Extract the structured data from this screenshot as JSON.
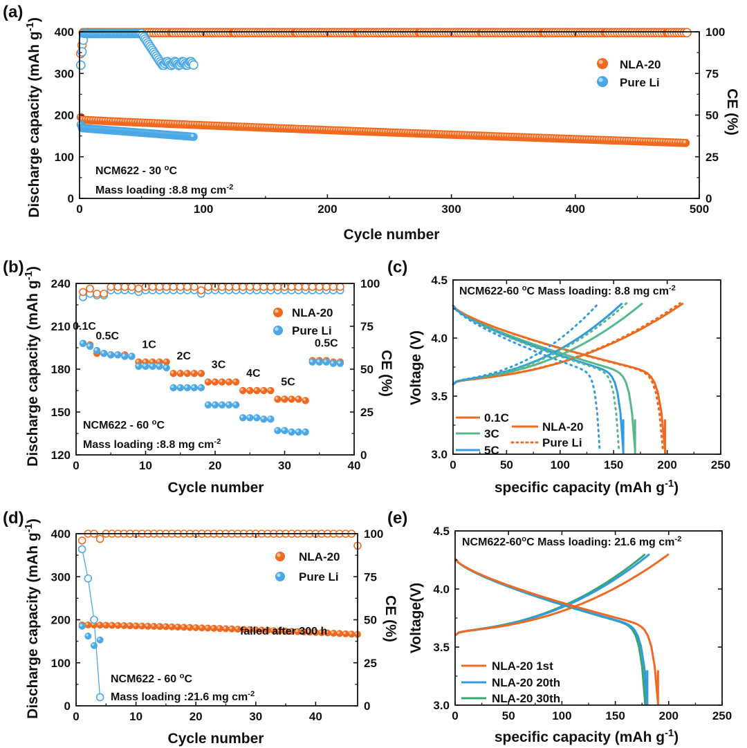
{
  "colors": {
    "nla": "#ef6a1f",
    "pure": "#4aa8e6",
    "c3": "#56b889",
    "c5": "#2f9be0",
    "g30": "#3aa56e"
  },
  "chart_data": [
    {
      "id": "a",
      "type": "scatter",
      "panel_label": "(a)",
      "xlabel": "Cycle number",
      "ylabel": "Discharge capacity (mAh g-1)",
      "ylabel_main": "Discharge capacity (mAh g",
      "ylabel_sup": "-1",
      "ylabel_end": ")",
      "y2label": "CE (%)",
      "xlim": [
        0,
        500
      ],
      "ylim": [
        0,
        400
      ],
      "y2lim": [
        0,
        100
      ],
      "xticks": [
        0,
        100,
        200,
        300,
        400,
        500
      ],
      "yticks": [
        0,
        100,
        200,
        300,
        400
      ],
      "y2ticks": [
        0,
        25,
        50,
        75,
        100
      ],
      "legend": [
        "NLA-20",
        "Pure Li"
      ],
      "annotations": [
        "NCM622 - 30 °C"
      ],
      "annotation_main": "NCM622 - 30 ",
      "annotation_sup": "o",
      "annotation_end": "C",
      "mass_loading_main": "Mass loading :8.8 mg cm",
      "mass_loading_sup": "-2",
      "series": [
        {
          "name": "NLA-20 capacity",
          "axis": "left",
          "cycles": 490,
          "start": 195,
          "end": 133
        },
        {
          "name": "Pure Li capacity",
          "axis": "left",
          "cycles": 92,
          "start": 177,
          "end": 148
        },
        {
          "name": "NLA-20 CE",
          "axis": "right",
          "cycles": 490,
          "first": 87,
          "plateau": 99.5
        },
        {
          "name": "Pure Li CE",
          "axis": "right",
          "cycles": 92,
          "first": 80,
          "plateau": 99,
          "drop_to": 80
        }
      ]
    },
    {
      "id": "b",
      "type": "scatter",
      "panel_label": "(b)",
      "xlabel": "Cycle number",
      "ylabel_main": "Discharge capacity (mAh g",
      "ylabel_sup": "-1",
      "ylabel_end": ")",
      "y2label": "CE (%)",
      "xlim": [
        0,
        40
      ],
      "ylim": [
        120,
        240
      ],
      "y2lim": [
        0,
        100
      ],
      "xticks": [
        0,
        10,
        20,
        30,
        40
      ],
      "yticks": [
        120,
        150,
        180,
        210,
        240
      ],
      "y2ticks": [
        0,
        25,
        50,
        75,
        100
      ],
      "legend": [
        "NLA-20",
        "Pure Li"
      ],
      "rate_labels": [
        "0.1C",
        "0.5C",
        "1C",
        "2C",
        "3C",
        "4C",
        "5C",
        "0.5C"
      ],
      "annotation_main": "NCM622 - 60 ",
      "annotation_sup": "o",
      "annotation_end": "C",
      "mass_loading_main": "Mass loading :8.8 mg cm",
      "mass_loading_sup": "-2",
      "nla_capacity": [
        198,
        197,
        191,
        191,
        190,
        190,
        190,
        189,
        185,
        185,
        185,
        185,
        185,
        177,
        177,
        177,
        177,
        177,
        171,
        171,
        171,
        171,
        171,
        165,
        165,
        165,
        165,
        165,
        159,
        159,
        159,
        159,
        158,
        186,
        186,
        186,
        185,
        185
      ],
      "pure_capacity": [
        198,
        196,
        193,
        191,
        190,
        190,
        189,
        189,
        182,
        182,
        182,
        182,
        181,
        167,
        167,
        167,
        167,
        167,
        155,
        155,
        155,
        155,
        155,
        146,
        146,
        146,
        145,
        145,
        137,
        137,
        136,
        136,
        136,
        185,
        185,
        185,
        184,
        184
      ],
      "nla_ce": [
        95,
        97,
        94,
        94,
        98,
        98,
        98,
        98,
        97,
        98,
        98,
        98,
        98,
        98,
        98,
        98,
        98,
        96,
        98,
        98,
        98,
        98,
        98,
        98,
        98,
        98,
        98,
        98,
        98,
        98,
        98,
        98,
        98,
        98,
        98,
        98,
        98,
        98
      ],
      "pure_ce": [
        92,
        94,
        93,
        93,
        96,
        96,
        96,
        96,
        95,
        96,
        96,
        96,
        96,
        96,
        96,
        96,
        96,
        94,
        96,
        96,
        96,
        96,
        96,
        96,
        96,
        96,
        96,
        96,
        96,
        96,
        96,
        96,
        96,
        96,
        96,
        96,
        96,
        96
      ]
    },
    {
      "id": "c",
      "type": "line",
      "panel_label": "(c)",
      "xlabel_main": "specific capacity (mAh g",
      "xlabel_sup": "-1",
      "xlabel_end": ")",
      "ylabel": "Voltage (V)",
      "xlim": [
        0,
        250
      ],
      "ylim": [
        3.0,
        4.5
      ],
      "xticks": [
        0,
        50,
        100,
        150,
        200,
        250
      ],
      "yticks": [
        3.0,
        3.5,
        4.0,
        4.5
      ],
      "title_main": "NCM622-60 ",
      "title_sup": "o",
      "title_mid": "C   Mass loading:  8.8 mg cm",
      "title_sup2": "-2",
      "legend": [
        "0.1C",
        "3C",
        "5C",
        "NLA-20",
        "Pure Li"
      ],
      "series": [
        {
          "name": "NLA-20 0.1C",
          "style": "solid",
          "color_key": "nla",
          "discharge_cap": 198,
          "charge_cap": 215,
          "plateau": 3.56
        },
        {
          "name": "NLA-20 3C",
          "style": "solid",
          "color_key": "c3",
          "discharge_cap": 170,
          "charge_cap": 177,
          "plateau": 3.55
        },
        {
          "name": "NLA-20 5C",
          "style": "solid",
          "color_key": "c5",
          "discharge_cap": 159,
          "charge_cap": 158,
          "plateau": 3.5
        },
        {
          "name": "Pure Li 0.1C",
          "style": "dotted",
          "color_key": "nla",
          "discharge_cap": 196,
          "charge_cap": 212,
          "plateau": 3.56
        },
        {
          "name": "Pure Li 3C",
          "style": "dotted",
          "color_key": "c3",
          "discharge_cap": 155,
          "charge_cap": 162,
          "plateau": 3.48
        },
        {
          "name": "Pure Li 5C",
          "style": "dotted",
          "color_key": "c5",
          "discharge_cap": 137,
          "charge_cap": 136,
          "plateau": 3.4
        }
      ]
    },
    {
      "id": "d",
      "type": "scatter",
      "panel_label": "(d)",
      "xlabel": "Cycle number",
      "ylabel_main": "Discharge capacity (mAh g",
      "ylabel_sup": "-1",
      "ylabel_end": ")",
      "y2label": "CE (%)",
      "xlim": [
        0,
        47
      ],
      "ylim": [
        0,
        400
      ],
      "y2lim": [
        0,
        100
      ],
      "xticks": [
        0,
        10,
        20,
        30,
        40
      ],
      "yticks": [
        0,
        100,
        200,
        300,
        400
      ],
      "y2ticks": [
        0,
        25,
        50,
        75,
        100
      ],
      "legend": [
        "NLA-20",
        "Pure Li"
      ],
      "failure_note": "failed after 300 h",
      "annotation_main": "NCM622 - 60 ",
      "annotation_sup": "o",
      "annotation_end": "C",
      "mass_loading_main": "Mass loading :21.6 mg cm",
      "mass_loading_sup": "-2",
      "nla_cycles": 47,
      "nla_start": 188,
      "nla_end": 166,
      "nla_ce_first": [
        96,
        100,
        100,
        97
      ],
      "nla_ce_plateau": 100,
      "pure_capacity": [
        185,
        162,
        140,
        153
      ],
      "pure_ce": [
        91,
        74,
        50,
        5
      ]
    },
    {
      "id": "e",
      "type": "line",
      "panel_label": "(e)",
      "xlabel_main": "specific capacity (mAh g",
      "xlabel_sup": "-1",
      "xlabel_end": ")",
      "ylabel": "Voltage(V)",
      "xlim": [
        0,
        250
      ],
      "ylim": [
        3.0,
        4.5
      ],
      "xticks": [
        0,
        50,
        100,
        150,
        200,
        250
      ],
      "yticks": [
        3.0,
        3.5,
        4.0,
        4.5
      ],
      "title_main": "NCM622-60",
      "title_sup": "o",
      "title_mid": "C  Mass loading:  21.6 mg cm",
      "title_sup2": "-2",
      "legend": [
        "NLA-20 1st",
        "NLA-20 20th",
        "NLA-20 30th"
      ],
      "series": [
        {
          "name": "NLA-20 1st",
          "color_key": "nla",
          "discharge_cap": 190,
          "charge_cap": 200
        },
        {
          "name": "NLA-20 20th",
          "color_key": "c5",
          "discharge_cap": 180,
          "charge_cap": 182
        },
        {
          "name": "NLA-20 30th",
          "color_key": "g30",
          "discharge_cap": 178,
          "charge_cap": 178
        }
      ]
    }
  ]
}
